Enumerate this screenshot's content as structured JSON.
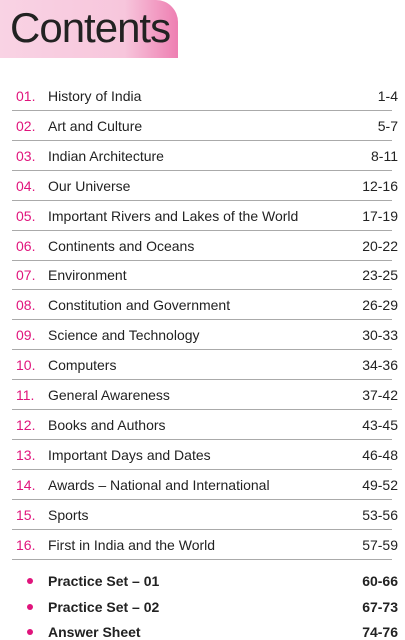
{
  "header": {
    "title": "Contents"
  },
  "entries": [
    {
      "number": "01.",
      "title": "History of India",
      "pages": "1-4"
    },
    {
      "number": "02.",
      "title": "Art and Culture",
      "pages": "5-7"
    },
    {
      "number": "03.",
      "title": "Indian Architecture",
      "pages": "8-11"
    },
    {
      "number": "04.",
      "title": "Our Universe",
      "pages": "12-16"
    },
    {
      "number": "05.",
      "title": "Important Rivers and Lakes of the World",
      "pages": "17-19"
    },
    {
      "number": "06.",
      "title": "Continents and Oceans",
      "pages": "20-22"
    },
    {
      "number": "07.",
      "title": "Environment",
      "pages": "23-25"
    },
    {
      "number": "08.",
      "title": "Constitution and Government",
      "pages": "26-29"
    },
    {
      "number": "09.",
      "title": "Science and Technology",
      "pages": "30-33"
    },
    {
      "number": "10.",
      "title": "Computers",
      "pages": "34-36"
    },
    {
      "number": "11.",
      "title": "General Awareness",
      "pages": "37-42"
    },
    {
      "number": "12.",
      "title": "Books and Authors",
      "pages": "43-45"
    },
    {
      "number": "13.",
      "title": "Important Days and Dates",
      "pages": "46-48"
    },
    {
      "number": "14.",
      "title": "Awards – National and International",
      "pages": "49-52"
    },
    {
      "number": "15.",
      "title": "Sports",
      "pages": "53-56"
    },
    {
      "number": "16.",
      "title": "First in India and the World",
      "pages": "57-59"
    }
  ],
  "extras": [
    {
      "title": "Practice Set – 01",
      "pages": "60-66"
    },
    {
      "title": "Practice Set – 02",
      "pages": "67-73"
    },
    {
      "title": "Answer Sheet",
      "pages": "74-76"
    }
  ]
}
